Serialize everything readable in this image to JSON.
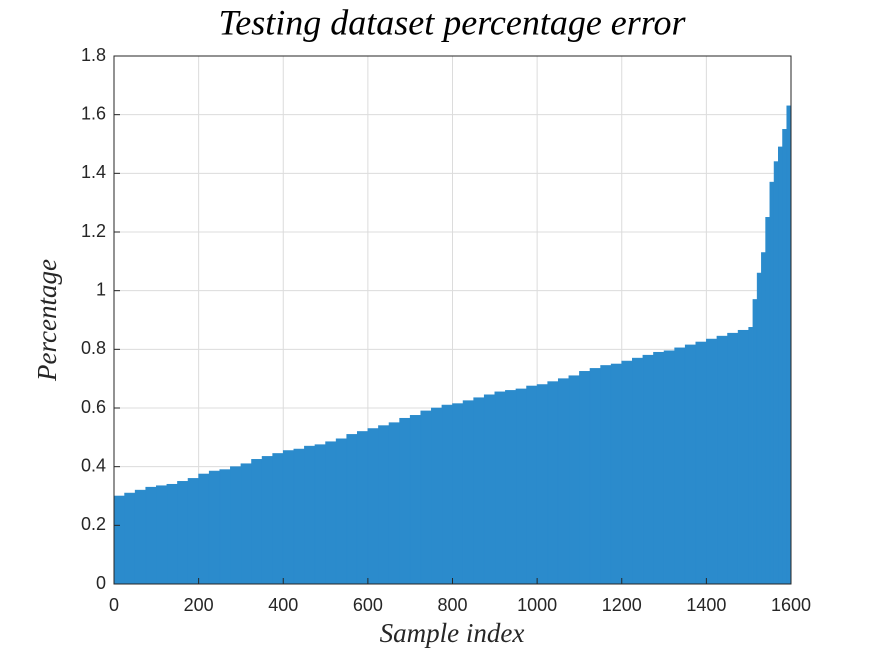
{
  "chart_data": {
    "type": "bar",
    "title": "Testing dataset percentage error",
    "x_label": "Sample index",
    "y_label": "Percentage",
    "x": [
      0,
      25,
      50,
      75,
      100,
      125,
      150,
      175,
      200,
      225,
      250,
      275,
      300,
      325,
      350,
      375,
      400,
      425,
      450,
      475,
      500,
      525,
      550,
      575,
      600,
      625,
      650,
      675,
      700,
      725,
      750,
      775,
      800,
      825,
      850,
      875,
      900,
      925,
      950,
      975,
      1000,
      1025,
      1050,
      1075,
      1100,
      1125,
      1150,
      1175,
      1200,
      1225,
      1250,
      1275,
      1300,
      1325,
      1350,
      1375,
      1400,
      1425,
      1450,
      1475,
      1500,
      1510,
      1520,
      1530,
      1540,
      1550,
      1560,
      1570,
      1580,
      1590
    ],
    "values": [
      0.3,
      0.31,
      0.32,
      0.33,
      0.335,
      0.34,
      0.35,
      0.36,
      0.375,
      0.385,
      0.39,
      0.4,
      0.41,
      0.425,
      0.435,
      0.445,
      0.455,
      0.46,
      0.47,
      0.475,
      0.485,
      0.495,
      0.51,
      0.52,
      0.53,
      0.54,
      0.55,
      0.565,
      0.575,
      0.59,
      0.6,
      0.61,
      0.615,
      0.625,
      0.635,
      0.645,
      0.655,
      0.66,
      0.665,
      0.675,
      0.68,
      0.69,
      0.7,
      0.71,
      0.725,
      0.735,
      0.745,
      0.75,
      0.76,
      0.77,
      0.78,
      0.79,
      0.795,
      0.805,
      0.815,
      0.825,
      0.835,
      0.845,
      0.855,
      0.865,
      0.875,
      0.97,
      1.06,
      1.13,
      1.25,
      1.37,
      1.44,
      1.49,
      1.55,
      1.63
    ],
    "color": "#2b8bcc",
    "xlim": [
      0,
      1600
    ],
    "xticks": [
      0,
      200,
      400,
      600,
      800,
      1000,
      1200,
      1400,
      1600
    ],
    "ylim": [
      0,
      1.8
    ],
    "yticks": [
      0,
      0.2,
      0.4,
      0.6,
      0.8,
      1,
      1.2,
      1.4,
      1.6,
      1.8
    ],
    "grid": true
  }
}
